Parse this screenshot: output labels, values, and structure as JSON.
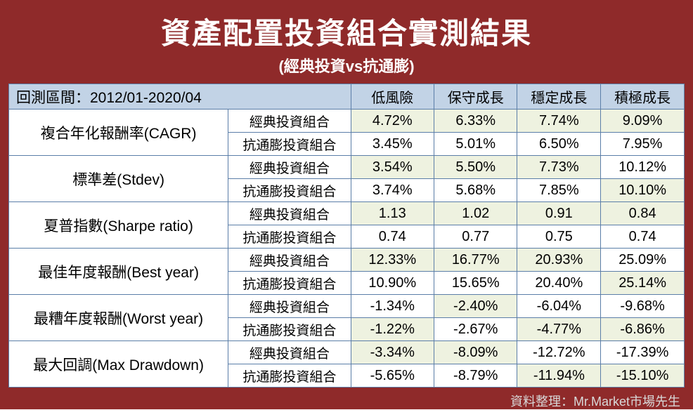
{
  "title": "資產配置投資組合實測結果",
  "subtitle": "(經典投資vs抗通膨)",
  "period_label": "回測區間：2012/01-2020/04",
  "columns": [
    "低風險",
    "保守成長",
    "穩定成長",
    "積極成長"
  ],
  "portfolio_classic": "經典投資組合",
  "portfolio_inflation": "抗通膨投資組合",
  "metrics": {
    "cagr": {
      "label": "複合年化報酬率(CAGR)",
      "classic": [
        "4.72%",
        "6.33%",
        "7.74%",
        "9.09%"
      ],
      "inflation": [
        "3.45%",
        "5.01%",
        "6.50%",
        "7.95%"
      ],
      "hl_classic": [
        true,
        true,
        true,
        true
      ],
      "hl_inflation": [
        false,
        false,
        false,
        false
      ]
    },
    "stdev": {
      "label": "標準差(Stdev)",
      "classic": [
        "3.54%",
        "5.50%",
        "7.73%",
        "10.12%"
      ],
      "inflation": [
        "3.74%",
        "5.68%",
        "7.85%",
        "10.10%"
      ],
      "hl_classic": [
        true,
        true,
        true,
        false
      ],
      "hl_inflation": [
        false,
        false,
        false,
        true
      ]
    },
    "sharpe": {
      "label": "夏普指數(Sharpe ratio)",
      "classic": [
        "1.13",
        "1.02",
        "0.91",
        "0.84"
      ],
      "inflation": [
        "0.74",
        "0.77",
        "0.75",
        "0.74"
      ],
      "hl_classic": [
        true,
        true,
        true,
        true
      ],
      "hl_inflation": [
        false,
        false,
        false,
        false
      ]
    },
    "best": {
      "label": "最佳年度報酬(Best year)",
      "classic": [
        "12.33%",
        "16.77%",
        "20.93%",
        "25.09%"
      ],
      "inflation": [
        "10.90%",
        "15.65%",
        "20.40%",
        "25.14%"
      ],
      "hl_classic": [
        true,
        true,
        true,
        false
      ],
      "hl_inflation": [
        false,
        false,
        false,
        true
      ]
    },
    "worst": {
      "label": "最糟年度報酬(Worst year)",
      "classic": [
        "-1.34%",
        "-2.40%",
        "-6.04%",
        "-9.68%"
      ],
      "inflation": [
        "-1.22%",
        "-2.67%",
        "-4.77%",
        "-6.86%"
      ],
      "hl_classic": [
        false,
        true,
        false,
        false
      ],
      "hl_inflation": [
        true,
        false,
        true,
        true
      ]
    },
    "mdd": {
      "label": "最大回調(Max Drawdown)",
      "classic": [
        "-3.34%",
        "-8.09%",
        "-12.72%",
        "-17.39%"
      ],
      "inflation": [
        "-5.65%",
        "-8.79%",
        "-11.94%",
        "-15.10%"
      ],
      "hl_classic": [
        true,
        true,
        false,
        false
      ],
      "hl_inflation": [
        false,
        false,
        true,
        true
      ]
    }
  },
  "metric_order": [
    "cagr",
    "stdev",
    "sharpe",
    "best",
    "worst",
    "mdd"
  ],
  "credit": "資料整理：Mr.Market市場先生",
  "colors": {
    "frame_bg": "#8f2a2a",
    "header_bg": "#c2d3e6",
    "highlight_bg": "#eef2e0",
    "border": "#5b7ea8",
    "title_text": "#ffffff",
    "cell_text": "#000000",
    "credit_text": "#d8d8d8"
  }
}
